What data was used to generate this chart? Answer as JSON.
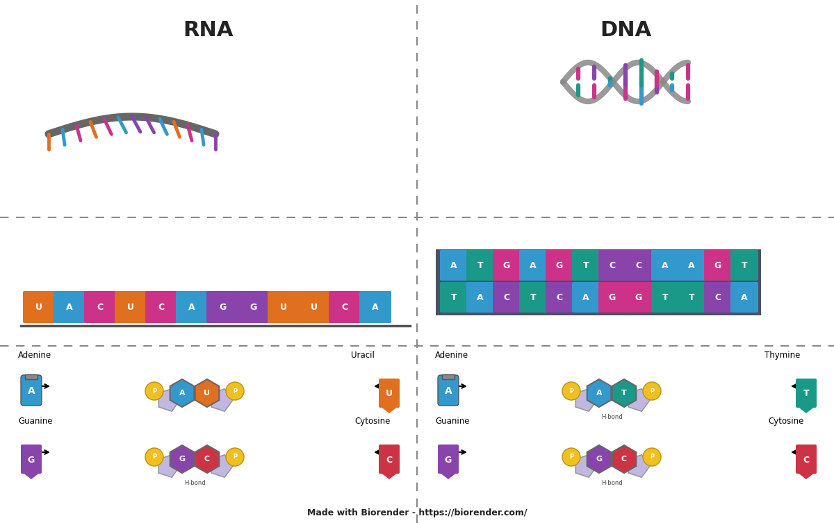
{
  "title_rna": "RNA",
  "title_dna": "DNA",
  "footer": "Made with Biorender - https://biorender.com/",
  "bg_color": "#ffffff",
  "divider_color": "#888888",
  "rna_nucleotide_colors": {
    "U": "#E07020",
    "A": "#3399CC",
    "C": "#CC3388",
    "G": "#8844AA"
  },
  "dna_nucleotide_colors": {
    "A": "#3399CC",
    "T": "#1A9988",
    "G": "#8844AA",
    "C": "#CC3344"
  },
  "sugar_color": "#C0B8E0",
  "phosphate_color": "#F0C020",
  "adenine_color": "#3399CC",
  "uracil_color": "#E07020",
  "guanine_color": "#7744AA",
  "cytosine_color": "#CC3344",
  "thymine_color": "#1A9988",
  "backbone_color": "#666666"
}
